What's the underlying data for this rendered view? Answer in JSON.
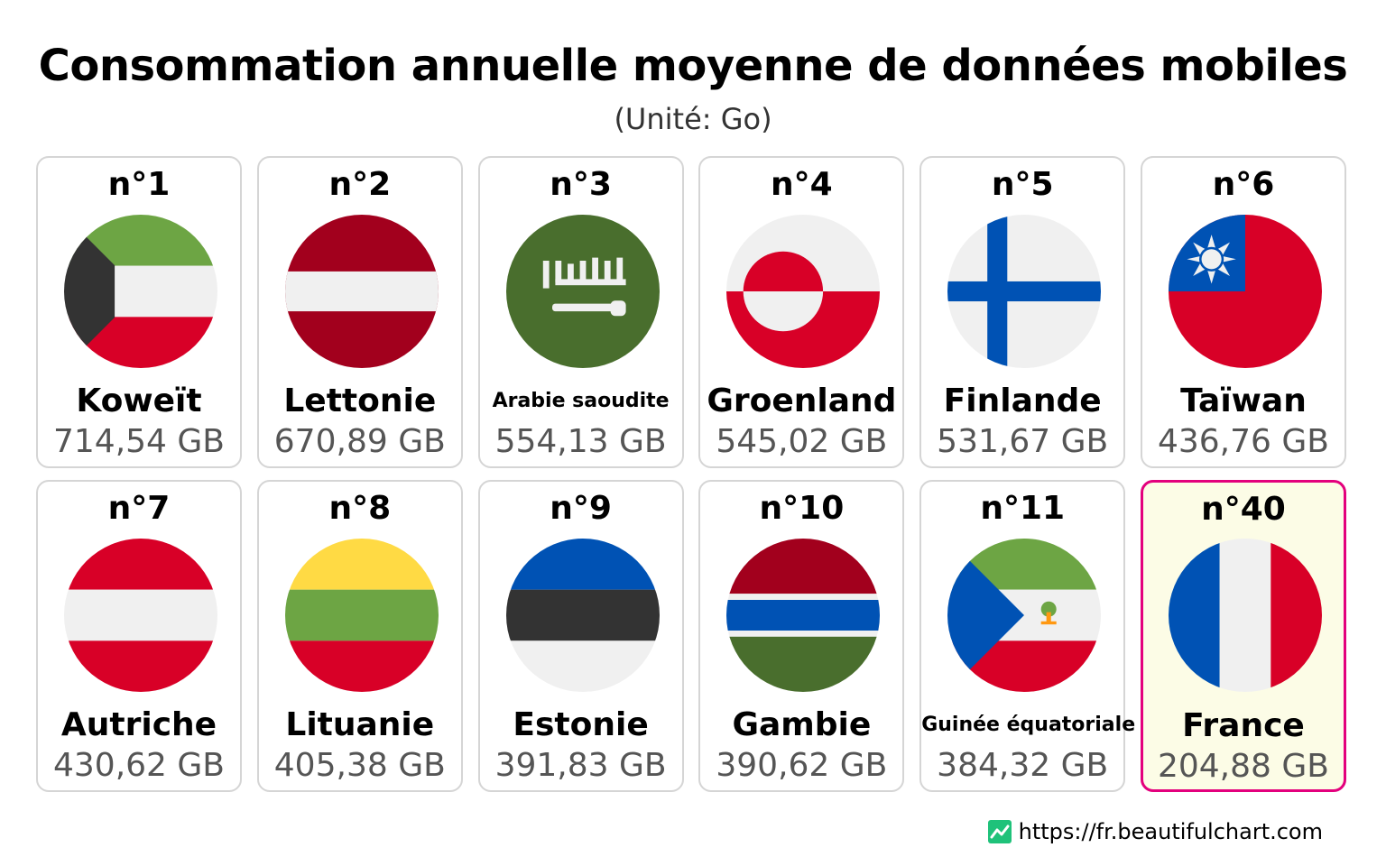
{
  "chart_data": {
    "type": "table",
    "title": "Consommation annuelle moyenne de données mobiles",
    "subtitle": "(Unité: Go)",
    "unit": "GB",
    "entries": [
      {
        "rank": "n°1",
        "country": "Koweït",
        "value": "714,54 GB",
        "flag": "kuwait-flag-icon"
      },
      {
        "rank": "n°2",
        "country": "Lettonie",
        "value": "670,89 GB",
        "flag": "latvia-flag-icon"
      },
      {
        "rank": "n°3",
        "country": "Arabie saoudite",
        "value": "554,13 GB",
        "flag": "saudi-arabia-flag-icon"
      },
      {
        "rank": "n°4",
        "country": "Groenland",
        "value": "545,02 GB",
        "flag": "greenland-flag-icon"
      },
      {
        "rank": "n°5",
        "country": "Finlande",
        "value": "531,67 GB",
        "flag": "finland-flag-icon"
      },
      {
        "rank": "n°6",
        "country": "Taïwan",
        "value": "436,76 GB",
        "flag": "taiwan-flag-icon"
      },
      {
        "rank": "n°7",
        "country": "Autriche",
        "value": "430,62 GB",
        "flag": "austria-flag-icon"
      },
      {
        "rank": "n°8",
        "country": "Lituanie",
        "value": "405,38 GB",
        "flag": "lithuania-flag-icon"
      },
      {
        "rank": "n°9",
        "country": "Estonie",
        "value": "391,83 GB",
        "flag": "estonia-flag-icon"
      },
      {
        "rank": "n°10",
        "country": "Gambie",
        "value": "390,62 GB",
        "flag": "gambia-flag-icon"
      },
      {
        "rank": "n°11",
        "country": "Guinée équatoriale",
        "value": "384,32 GB",
        "flag": "equatorial-guinea-flag-icon"
      },
      {
        "rank": "n°40",
        "country": "France",
        "value": "204,88 GB",
        "flag": "france-flag-icon",
        "highlighted": true
      }
    ]
  },
  "colors": {
    "card_border": "#d5d5d5",
    "highlight_border": "#e3007d",
    "highlight_background": "#fcfce6",
    "value_text": "#555555"
  },
  "footer": {
    "source_url": "https://fr.beautifulchart.com",
    "logo": "beautifulchart-logo-icon"
  }
}
